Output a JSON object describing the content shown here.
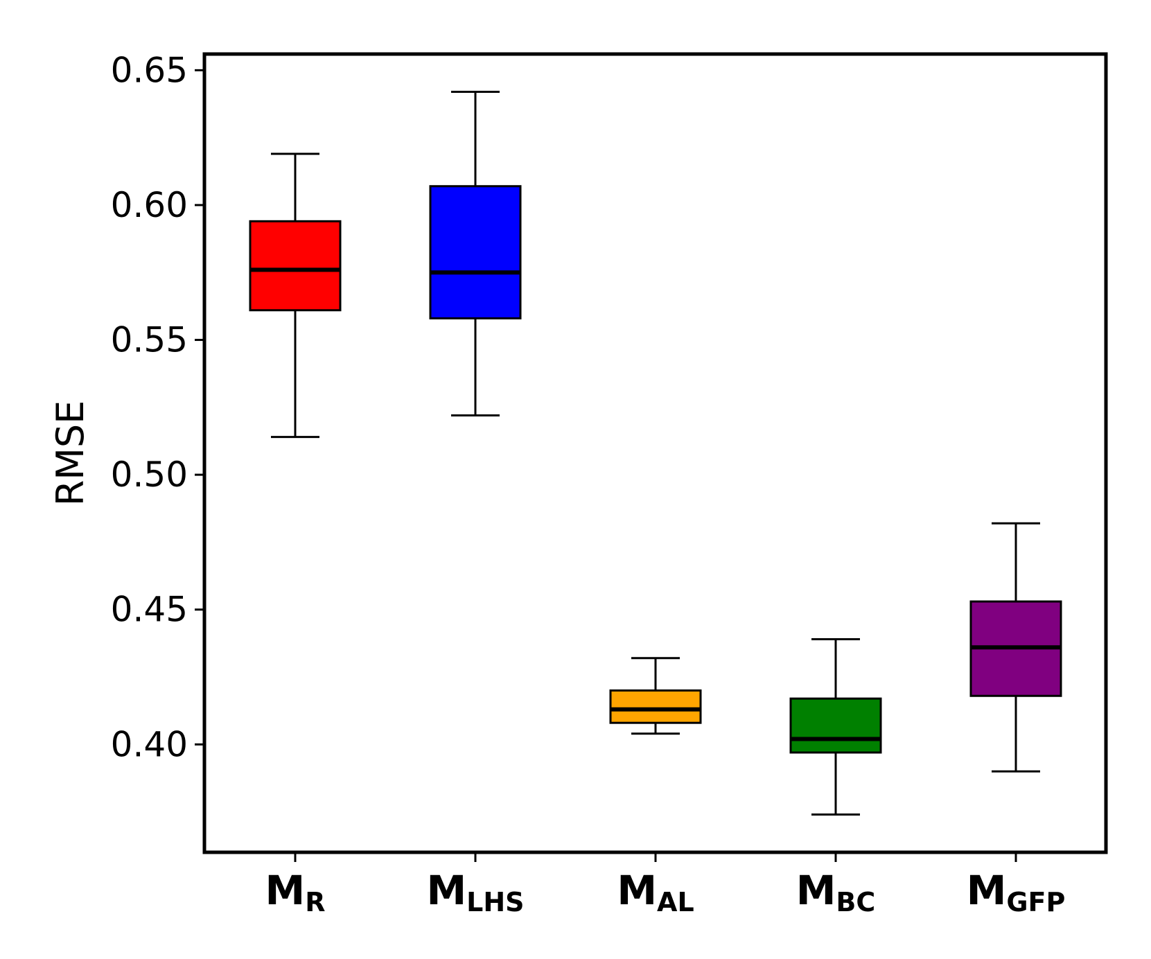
{
  "chart_data": {
    "type": "box",
    "ylabel": "RMSE",
    "ylim": [
      0.36,
      0.656
    ],
    "yticks": [
      "0.40",
      "0.45",
      "0.50",
      "0.55",
      "0.60",
      "0.65"
    ],
    "grid": false,
    "categories": [
      {
        "main": "M",
        "sub": "R"
      },
      {
        "main": "M",
        "sub": "LHS"
      },
      {
        "main": "M",
        "sub": "AL"
      },
      {
        "main": "M",
        "sub": "BC"
      },
      {
        "main": "M",
        "sub": "GFP"
      }
    ],
    "boxes": [
      {
        "whisker_low": 0.514,
        "q1": 0.561,
        "median": 0.576,
        "q3": 0.594,
        "whisker_high": 0.619,
        "color": "#ff0000"
      },
      {
        "whisker_low": 0.522,
        "q1": 0.558,
        "median": 0.575,
        "q3": 0.607,
        "whisker_high": 0.642,
        "color": "#0000ff"
      },
      {
        "whisker_low": 0.404,
        "q1": 0.408,
        "median": 0.413,
        "q3": 0.42,
        "whisker_high": 0.432,
        "color": "#ffa500"
      },
      {
        "whisker_low": 0.374,
        "q1": 0.397,
        "median": 0.402,
        "q3": 0.417,
        "whisker_high": 0.439,
        "color": "#008000"
      },
      {
        "whisker_low": 0.39,
        "q1": 0.418,
        "median": 0.436,
        "q3": 0.453,
        "whisker_high": 0.482,
        "color": "#800080"
      }
    ]
  }
}
